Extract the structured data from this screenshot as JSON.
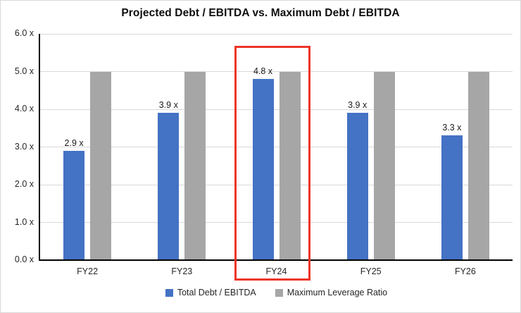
{
  "title": "Projected Debt / EBITDA vs. Maximum Debt / EBITDA",
  "colors": {
    "series_blue": "#4472C4",
    "series_gray": "#A6A6A6",
    "gridline": "#D9D9D9",
    "axis_line": "#000000",
    "highlight_red": "#ED3528",
    "text": "#262626"
  },
  "chart_data": {
    "type": "bar",
    "title": "Projected Debt / EBITDA vs. Maximum Debt / EBITDA",
    "categories": [
      "FY22",
      "FY23",
      "FY24",
      "FY25",
      "FY26"
    ],
    "series": [
      {
        "name": "Total Debt / EBITDA",
        "color": "#4472C4",
        "values": [
          2.9,
          3.9,
          4.8,
          3.9,
          3.3
        ],
        "data_labels": [
          "2.9 x",
          "3.9 x",
          "4.8 x",
          "3.9 x",
          "3.3 x"
        ]
      },
      {
        "name": "Maximum Leverage Ratio",
        "color": "#A6A6A6",
        "values": [
          5.0,
          5.0,
          5.0,
          5.0,
          5.0
        ],
        "data_labels": null
      }
    ],
    "xlabel": "",
    "ylabel": "",
    "ylim": [
      0,
      6
    ],
    "ytick_step": 1,
    "ytick_labels": [
      "0.0 x",
      "1.0 x",
      "2.0 x",
      "3.0 x",
      "4.0 x",
      "5.0 x",
      "6.0 x"
    ],
    "grid": true,
    "legend_position": "bottom",
    "legend": {
      "items": [
        {
          "label": "Total Debt / EBITDA",
          "color": "#4472C4"
        },
        {
          "label": "Maximum Leverage Ratio",
          "color": "#A6A6A6"
        }
      ]
    },
    "highlight": {
      "shape": "red-rectangle",
      "category": "FY24"
    }
  }
}
